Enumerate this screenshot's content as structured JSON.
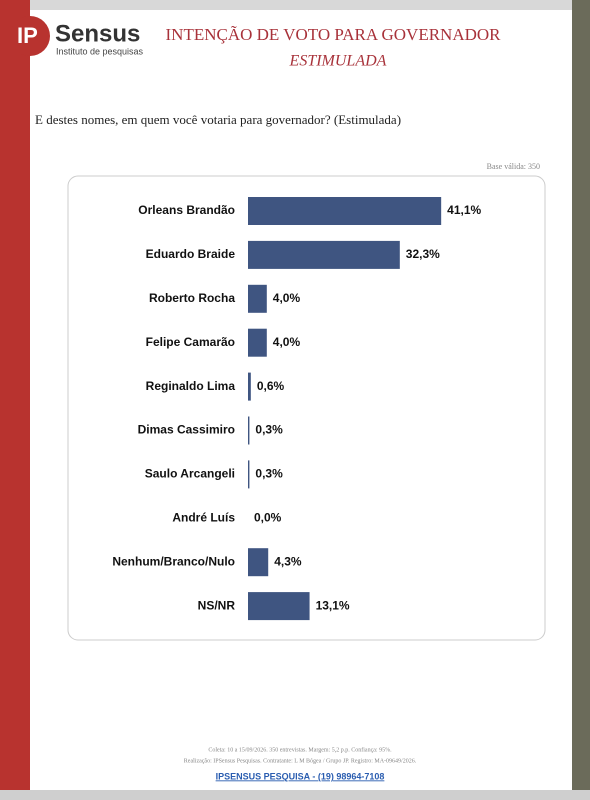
{
  "header": {
    "logo_mark": "IP",
    "logo_name": "Sensus",
    "logo_tagline": "Instituto de pesquisas",
    "title": "INTENÇÃO DE VOTO PARA GOVERNADOR",
    "subtitle": "ESTIMULADA"
  },
  "question": "E destes nomes, em quem você votaria para governador? (Estimulada)",
  "base": "Base válida: 350",
  "chart_data": {
    "type": "hbar",
    "color": "#3f5581",
    "categories": [
      "Orleans Brandão",
      "Eduardo Braide",
      "Roberto Rocha",
      "Felipe Camarão",
      "Reginaldo Lima",
      "Dimas Cassimiro",
      "Saulo Arcangeli",
      "André Luís",
      "Nenhum/Branco/Nulo",
      "NS/NR"
    ],
    "values": [
      41.1,
      32.3,
      4.0,
      4.0,
      0.6,
      0.3,
      0.3,
      0.0,
      4.3,
      13.1
    ],
    "value_labels": [
      "41,1%",
      "32,3%",
      "4,0%",
      "4,0%",
      "0,6%",
      "0,3%",
      "0,3%",
      "0,0%",
      "4,3%",
      "13,1%"
    ]
  },
  "footer": {
    "line1": "Coleta: 10 a 15/09/2026. 350 entrevistas. Margem: 5,2 p.p. Confiança: 95%.",
    "line2": "Realização: IPSensus Pesquisas. Contratante: L M Bógea / Grupo JP. Registro: MA-09649/2026.",
    "contact": "IPSENSUS PESQUISA - (19) 98964-7108"
  }
}
